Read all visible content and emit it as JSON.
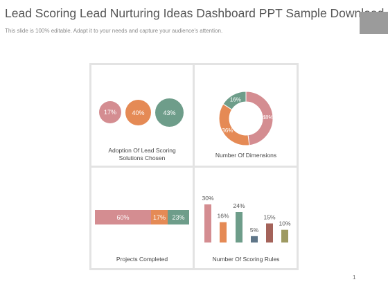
{
  "header": {
    "title": "Lead Scoring Lead Nurturing Ideas Dashboard PPT Sample Download",
    "subtitle": "This slide is 100% editable. Adapt it to your needs and capture your audience's attention."
  },
  "footer": {
    "page_number": "1"
  },
  "colors": {
    "pink": "#d48d91",
    "orange": "#e58a55",
    "green": "#6e9d8a",
    "slate": "#5f7688",
    "brown": "#a4635a",
    "olive": "#9e9a62"
  },
  "panels": {
    "adoption": {
      "label": "Adoption Of Lead Scoring Solutions Chosen",
      "items": [
        {
          "value": "17%",
          "color": "pink"
        },
        {
          "value": "40%",
          "color": "orange"
        },
        {
          "value": "43%",
          "color": "green"
        }
      ]
    },
    "dimensions": {
      "label": "Number Of Dimensions"
    },
    "projects": {
      "label": "Projects Completed",
      "segments": [
        {
          "value": "60%",
          "color": "pink"
        },
        {
          "value": "17%",
          "color": "orange"
        },
        {
          "value": "23%",
          "color": "green"
        }
      ]
    },
    "scoring": {
      "label": "Number Of Scoring Rules"
    }
  },
  "chart_data": [
    {
      "type": "pie",
      "labels": [
        "48%",
        "36%",
        "16%"
      ],
      "values": [
        48,
        36,
        16
      ],
      "colors": [
        "#d48d91",
        "#e58a55",
        "#6e9d8a"
      ]
    },
    {
      "type": "bar",
      "categories": [
        "30%",
        "16%",
        "24%",
        "5%",
        "15%",
        "10%"
      ],
      "values": [
        30,
        16,
        24,
        5,
        15,
        10
      ],
      "colors": [
        "#d48d91",
        "#e58a55",
        "#6e9d8a",
        "#5f7688",
        "#a4635a",
        "#9e9a62"
      ],
      "ylim": [
        0,
        30
      ]
    }
  ]
}
